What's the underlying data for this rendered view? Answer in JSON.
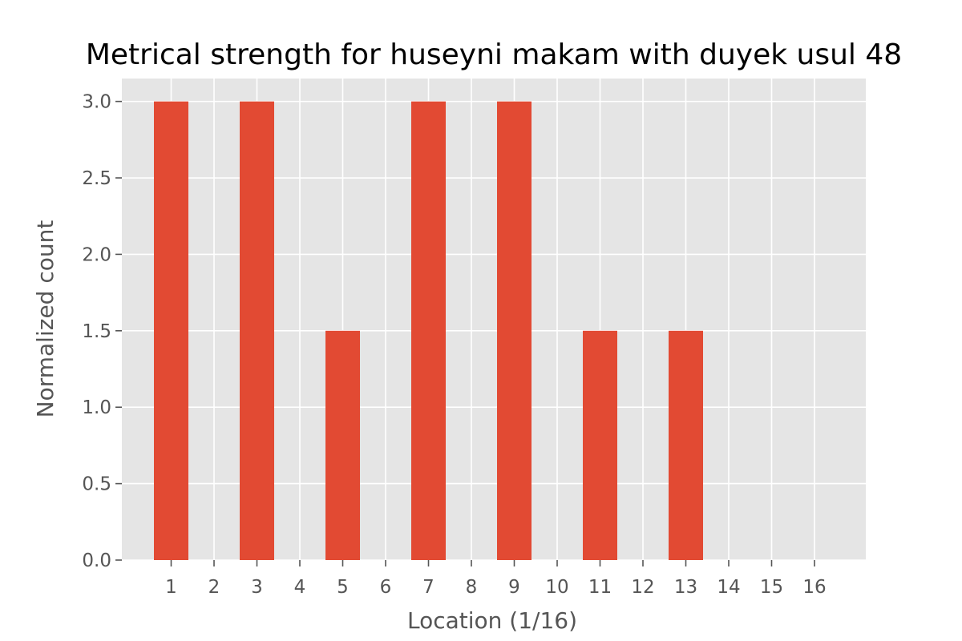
{
  "chart_data": {
    "type": "bar",
    "title": "Metrical strength for huseyni makam with duyek usul 48",
    "xlabel": "Location (1/16)",
    "ylabel": "Normalized count",
    "categories": [
      "1",
      "2",
      "3",
      "4",
      "5",
      "6",
      "7",
      "8",
      "9",
      "10",
      "11",
      "12",
      "13",
      "14",
      "15",
      "16"
    ],
    "values": [
      3.0,
      0,
      3.0,
      0,
      1.5,
      0,
      3.0,
      0,
      3.0,
      0,
      1.5,
      0,
      1.5,
      0,
      0,
      0
    ],
    "yticks": [
      "0.0",
      "0.5",
      "1.0",
      "1.5",
      "2.0",
      "2.5",
      "3.0"
    ],
    "ylim": [
      0,
      3.15
    ],
    "grid": true,
    "style": "ggplot",
    "bar_color": "#E24A33",
    "background_color": "#E5E5E5",
    "grid_color": "#FFFFFF"
  }
}
